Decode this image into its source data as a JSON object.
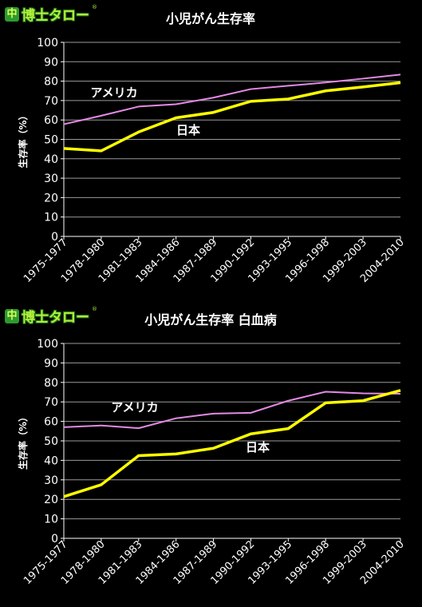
{
  "logo": {
    "mark": "中",
    "text": "博士タロー",
    "reg": "®"
  },
  "colors": {
    "usa": "#e48ae6",
    "japan": "#ffff00",
    "grid": "#9a9a9a",
    "background": "#000000"
  },
  "chart_data": [
    {
      "type": "line",
      "title": "小児がん生存率",
      "ylabel": "生存率（%）",
      "ylim": [
        0,
        100
      ],
      "yticks": [
        0,
        10,
        20,
        30,
        40,
        50,
        60,
        70,
        80,
        90,
        100
      ],
      "grid": true,
      "categories": [
        "1975-1977",
        "1978-1980",
        "1981-1983",
        "1984-1986",
        "1987-1989",
        "1990-1992",
        "1993-1995",
        "1996-1998",
        "1999-2003",
        "2004-2010"
      ],
      "series": [
        {
          "name": "アメリカ",
          "values": [
            57.8,
            62.2,
            66.9,
            68.1,
            71.5,
            75.9,
            77.6,
            79.3,
            81.3,
            83.4
          ]
        },
        {
          "name": "日本",
          "values": [
            45.3,
            44.1,
            53.8,
            61.1,
            63.9,
            69.6,
            70.8,
            75,
            77,
            79.2
          ]
        }
      ]
    },
    {
      "type": "line",
      "title": "小児がん生存率 白血病",
      "ylabel": "生存率（%）",
      "ylim": [
        0,
        100
      ],
      "yticks": [
        0,
        10,
        20,
        30,
        40,
        50,
        60,
        70,
        80,
        90,
        100
      ],
      "grid": true,
      "categories": [
        "1975-1977",
        "1978-1980",
        "1981-1983",
        "1984-1986",
        "1987-1989",
        "1990-1992",
        "1993-1995",
        "1996-1998",
        "1999-2003",
        "2004-2010"
      ],
      "series": [
        {
          "name": "アメリカ",
          "values": [
            57,
            57.9,
            56.5,
            61.6,
            64,
            64.4,
            70.6,
            75.2,
            74.4,
            74.2
          ]
        },
        {
          "name": "日本",
          "values": [
            21.4,
            27.5,
            42.4,
            43.3,
            46.2,
            53.6,
            56.3,
            69.5,
            70.6,
            75.9
          ]
        }
      ]
    }
  ]
}
